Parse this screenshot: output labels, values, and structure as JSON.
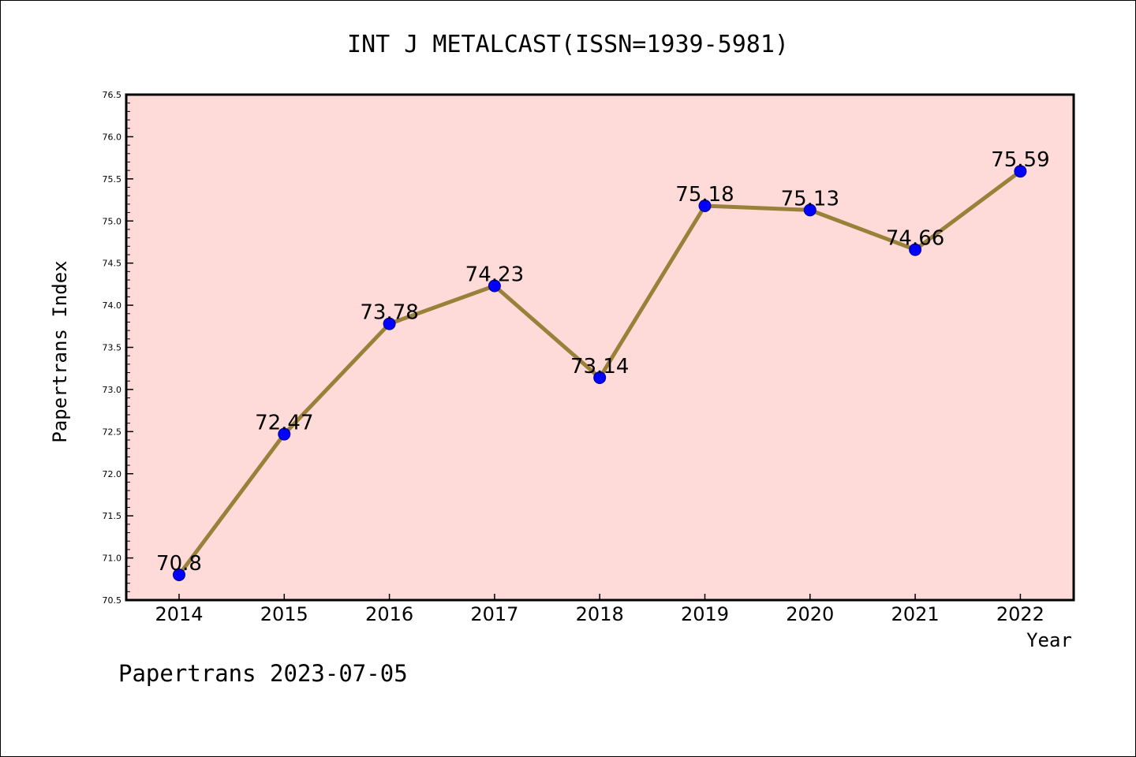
{
  "chart_data": {
    "type": "line",
    "title": "INT J METALCAST(ISSN=1939-5981)",
    "xlabel": "Year",
    "ylabel": "Papertrans Index",
    "categories": [
      "2014",
      "2015",
      "2016",
      "2017",
      "2018",
      "2019",
      "2020",
      "2021",
      "2022"
    ],
    "values": [
      70.8,
      72.47,
      73.78,
      74.23,
      73.14,
      75.18,
      75.13,
      74.66,
      75.59
    ],
    "data_labels": [
      "70.8",
      "72.47",
      "73.78",
      "74.23",
      "73.14",
      "75.18",
      "75.13",
      "74.66",
      "75.59"
    ],
    "ylim": [
      70.5,
      76.5
    ],
    "yticks": [
      "70.5",
      "71.0",
      "71.5",
      "72.0",
      "72.5",
      "73.0",
      "73.5",
      "74.0",
      "74.5",
      "75.0",
      "75.5",
      "76.0",
      "76.5"
    ],
    "grid": false,
    "colors": {
      "plot_background": "#fedbd9",
      "line": "#9a8038",
      "marker": "#0000ff"
    }
  },
  "footer": "Papertrans 2023-07-05"
}
